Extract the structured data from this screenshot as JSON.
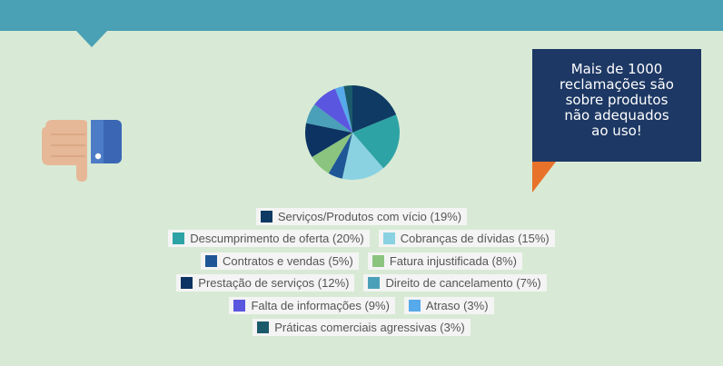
{
  "callout": {
    "lines": [
      "Mais de 1000",
      "reclamações são",
      "sobre produtos",
      "não adequados",
      "ao uso!"
    ]
  },
  "colors": {
    "top_bar": "#4aa0b4",
    "background": "#d8ead5",
    "callout_bg": "#1d3864",
    "callout_tail": "#e8722a"
  },
  "icons": {
    "thumb": "thumbs-down-icon"
  },
  "chart_data": {
    "type": "pie",
    "slices": [
      {
        "label": "Serviços/Produtos com vício (19%)",
        "value": 19,
        "color": "#0e3a63"
      },
      {
        "label": "Descumprimento de oferta (20%)",
        "value": 20,
        "color": "#2ea3a6"
      },
      {
        "label": "Cobranças de dívidas (15%)",
        "value": 15,
        "color": "#8ad2e2"
      },
      {
        "label": "Contratos e vendas (5%)",
        "value": 5,
        "color": "#1f5796"
      },
      {
        "label": "Fatura injustificada (8%)",
        "value": 8,
        "color": "#8bc47f"
      },
      {
        "label": "Prestação de serviços (12%)",
        "value": 12,
        "color": "#0c3362"
      },
      {
        "label": "Direito de cancelamento (7%)",
        "value": 7,
        "color": "#4aa0b8"
      },
      {
        "label": "Falta de informações (9%)",
        "value": 9,
        "color": "#5b56df"
      },
      {
        "label": "Atraso (3%)",
        "value": 3,
        "color": "#56a9ea"
      },
      {
        "label": "Práticas comerciais agressivas (3%)",
        "value": 3,
        "color": "#1b5a6a"
      }
    ],
    "legend_rows": [
      [
        0
      ],
      [
        1,
        2
      ],
      [
        3,
        4
      ],
      [
        5,
        6
      ],
      [
        7,
        8
      ],
      [
        9
      ]
    ]
  }
}
